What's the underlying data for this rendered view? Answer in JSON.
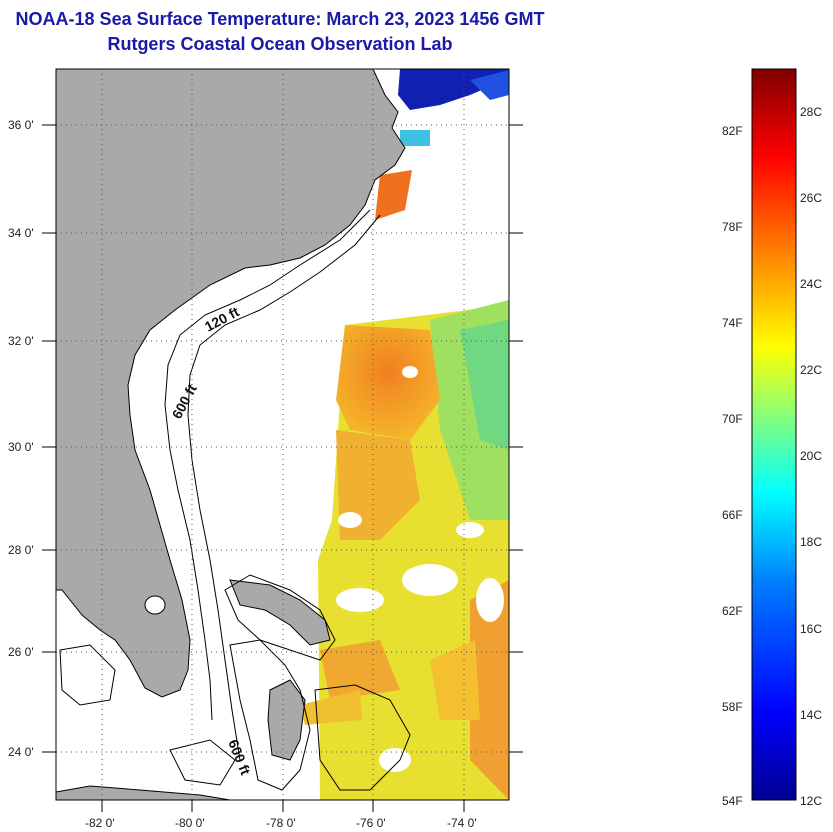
{
  "title": {
    "line1": "NOAA-18 Sea Surface Temperature:  March 23, 2023 1456 GMT",
    "line2": "Rutgers Coastal Ocean Observation Lab"
  },
  "map": {
    "lon_range": [
      -83,
      -73
    ],
    "lat_range": [
      23,
      37
    ],
    "lat_ticks": [
      {
        "value": 36,
        "label": "36 0'"
      },
      {
        "value": 34,
        "label": "34 0'"
      },
      {
        "value": 32,
        "label": "32 0'"
      },
      {
        "value": 30,
        "label": "30 0'"
      },
      {
        "value": 28,
        "label": "28 0'"
      },
      {
        "value": 26,
        "label": "26 0'"
      },
      {
        "value": 24,
        "label": "24 0'"
      }
    ],
    "lon_ticks": [
      {
        "value": -82,
        "label": "-82 0'"
      },
      {
        "value": -80,
        "label": "-80 0'"
      },
      {
        "value": -78,
        "label": "-78 0'"
      },
      {
        "value": -76,
        "label": "-76 0'"
      },
      {
        "value": -74,
        "label": "-74 0'"
      }
    ],
    "isobath_labels": [
      "120 ft",
      "600 ft",
      "600 ft"
    ],
    "colors": {
      "land": "#a9a9a9",
      "ocean": "#ffffff",
      "coast": "#000000",
      "grid": "#555555"
    }
  },
  "colorbar": {
    "fahrenheit_labels": [
      "82F",
      "78F",
      "74F",
      "70F",
      "66F",
      "62F",
      "58F",
      "54F"
    ],
    "celsius_labels": [
      "28C",
      "26C",
      "24C",
      "22C",
      "20C",
      "18C",
      "16C",
      "14C",
      "12C"
    ],
    "range_c": [
      12,
      29
    ],
    "colors": [
      "#00008f",
      "#0000ff",
      "#0080ff",
      "#00ffff",
      "#80ff80",
      "#ffff00",
      "#ff8000",
      "#ff0000",
      "#800000"
    ]
  }
}
